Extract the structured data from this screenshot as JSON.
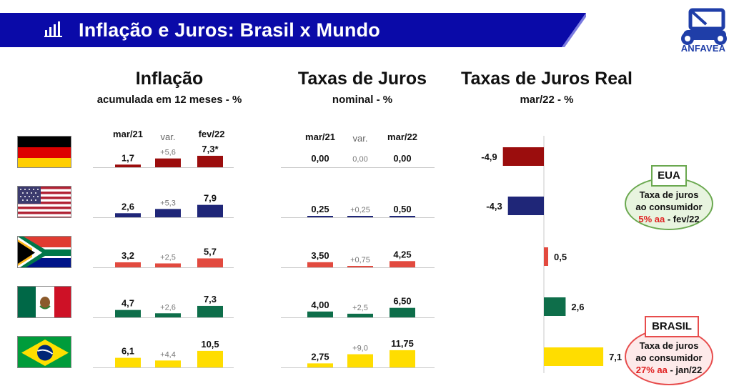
{
  "header": {
    "title": "Inflação e Juros: Brasil x Mundo",
    "banner_color": "#0a0aa8",
    "logo_text": "ANFAVEA",
    "logo_color": "#1f3ea8"
  },
  "sections": {
    "inflation": {
      "title": "Inflação",
      "subtitle": "acumulada em 12 meses - %",
      "col1": "mar/21",
      "col_var": "var.",
      "col2": "fev/22"
    },
    "nominal": {
      "title": "Taxas de Juros",
      "subtitle": "nominal - %",
      "col1": "mar/21",
      "col_var": "var.",
      "col2": "mar/22"
    },
    "real": {
      "title": "Taxas de Juros Real",
      "subtitle": "mar/22 - %"
    }
  },
  "countries": [
    {
      "flag": "germany",
      "color": "#9b0d0d"
    },
    {
      "flag": "usa",
      "color": "#1f2678"
    },
    {
      "flag": "south-africa",
      "color": "#e24a3f"
    },
    {
      "flag": "mexico",
      "color": "#0e6e4a"
    },
    {
      "flag": "brazil",
      "color": "#ffdd00"
    }
  ],
  "chart_data": [
    {
      "type": "bar",
      "title": "Inflação",
      "subtitle": "acumulada em 12 meses - %",
      "categories": [
        "mar/21",
        "var.",
        "fev/22"
      ],
      "series": [
        {
          "values": [
            1.7,
            5.6,
            7.3
          ],
          "labels": [
            "1,7",
            "+5,6",
            "7,3*"
          ]
        },
        {
          "values": [
            2.6,
            5.3,
            7.9
          ],
          "labels": [
            "2,6",
            "+5,3",
            "7,9"
          ]
        },
        {
          "values": [
            3.2,
            2.5,
            5.7
          ],
          "labels": [
            "3,2",
            "+2,5",
            "5,7"
          ]
        },
        {
          "values": [
            4.7,
            2.6,
            7.3
          ],
          "labels": [
            "4,7",
            "+2,6",
            "7,3"
          ]
        },
        {
          "values": [
            6.1,
            4.4,
            10.5
          ],
          "labels": [
            "6,1",
            "+4,4",
            "10,5"
          ]
        }
      ]
    },
    {
      "type": "bar",
      "title": "Taxas de Juros",
      "subtitle": "nominal - %",
      "categories": [
        "mar/21",
        "var.",
        "mar/22"
      ],
      "series": [
        {
          "values": [
            0.0,
            0.0,
            0.0
          ],
          "labels": [
            "0,00",
            "0,00",
            "0,00"
          ]
        },
        {
          "values": [
            0.25,
            0.25,
            0.5
          ],
          "labels": [
            "0,25",
            "+0,25",
            "0,50"
          ]
        },
        {
          "values": [
            3.5,
            0.75,
            4.25
          ],
          "labels": [
            "3,50",
            "+0,75",
            "4,25"
          ]
        },
        {
          "values": [
            4.0,
            2.5,
            6.5
          ],
          "labels": [
            "4,00",
            "+2,5",
            "6,50"
          ]
        },
        {
          "values": [
            2.75,
            9.0,
            11.75
          ],
          "labels": [
            "2,75",
            "+9,0",
            "11,75"
          ]
        }
      ]
    },
    {
      "type": "bar",
      "orientation": "horizontal",
      "title": "Taxas de Juros Real",
      "subtitle": "mar/22 - %",
      "values": [
        -4.9,
        -4.3,
        0.5,
        2.6,
        7.1
      ],
      "labels": [
        "-4,9",
        "-4,3",
        "0,5",
        "2,6",
        "7,1"
      ]
    }
  ],
  "callouts": {
    "eua": {
      "tag": "EUA",
      "line1": "Taxa de juros",
      "line2": "ao consumidor",
      "rate": "5% aa",
      "period": " - fev/22"
    },
    "brasil": {
      "tag": "BRASIL",
      "line1": "Taxa de juros",
      "line2": "ao consumidor",
      "rate": "27% aa",
      "period": " - jan/22"
    }
  }
}
